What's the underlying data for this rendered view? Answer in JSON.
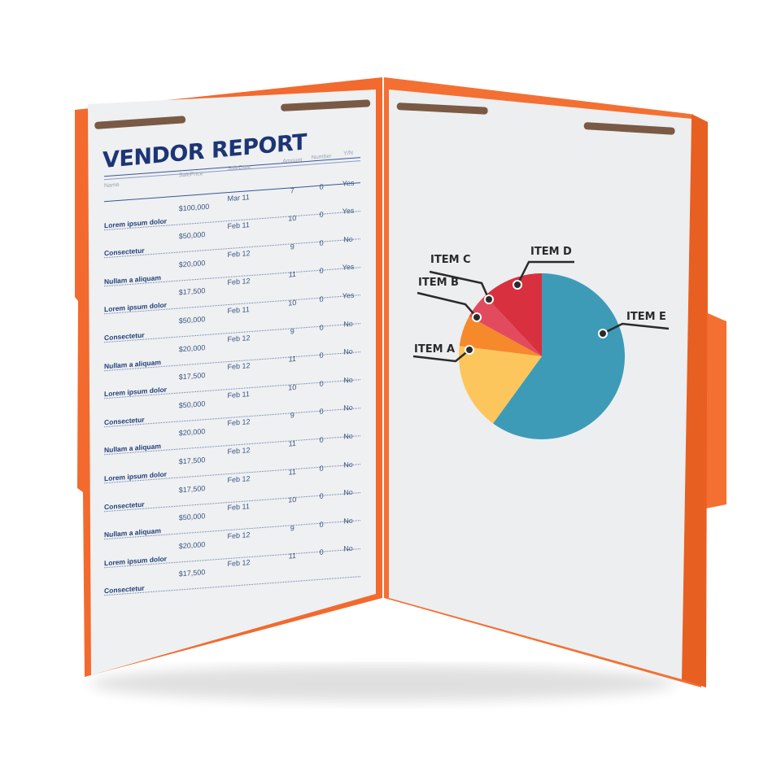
{
  "report": {
    "title": "VENDOR REPORT",
    "columns": [
      "Name",
      "SalePrice",
      "SaleDate",
      "Amount",
      "Number",
      "Y/N"
    ],
    "rows": [
      [
        "Lorem ipsum dolor",
        "$100,000",
        "Mar 11",
        "7",
        "0",
        "Yes"
      ],
      [
        "Consectetur",
        "$50,000",
        "Feb 11",
        "10",
        "0",
        "Yes"
      ],
      [
        "Nullam a aliquam",
        "$20,000",
        "Feb 12",
        "9",
        "0",
        "No"
      ],
      [
        "Lorem ipsum dolor",
        "$17,500",
        "Feb 12",
        "11",
        "0",
        "Yes"
      ],
      [
        "Consectetur",
        "$50,000",
        "Feb 11",
        "10",
        "0",
        "Yes"
      ],
      [
        "Nullam a aliquam",
        "$20,000",
        "Feb 12",
        "9",
        "0",
        "No"
      ],
      [
        "Lorem ipsum dolor",
        "$17,500",
        "Feb 12",
        "11",
        "0",
        "No"
      ],
      [
        "Consectetur",
        "$50,000",
        "Feb 11",
        "10",
        "0",
        "No"
      ],
      [
        "Nullam a aliquam",
        "$20,000",
        "Feb 12",
        "9",
        "0",
        "No"
      ],
      [
        "Lorem ipsum dolor",
        "$17,500",
        "Feb 12",
        "11",
        "0",
        "No"
      ],
      [
        "Consectetur",
        "$17,500",
        "Feb 12",
        "11",
        "0",
        "No"
      ],
      [
        "Nullam a aliquam",
        "$50,000",
        "Feb 11",
        "10",
        "0",
        "No"
      ],
      [
        "Lorem ipsum dolor",
        "$20,000",
        "Feb 12",
        "9",
        "0",
        "No"
      ],
      [
        "Consectetur",
        "$17,500",
        "Feb 12",
        "11",
        "0",
        "No"
      ]
    ]
  },
  "chart_data": {
    "type": "pie",
    "labels": [
      "ITEM E",
      "ITEM A",
      "ITEM B",
      "ITEM C",
      "ITEM D"
    ],
    "values": [
      60,
      17,
      6,
      5,
      12
    ],
    "colors": [
      "#3e9bb7",
      "#fcc65c",
      "#f5892b",
      "#e24b5d",
      "#d8303f"
    ]
  },
  "colors": {
    "folder": "#f26a2e",
    "paper": "#eef0f2",
    "fastener": "#7a5a45",
    "ink": "#1d3575"
  }
}
